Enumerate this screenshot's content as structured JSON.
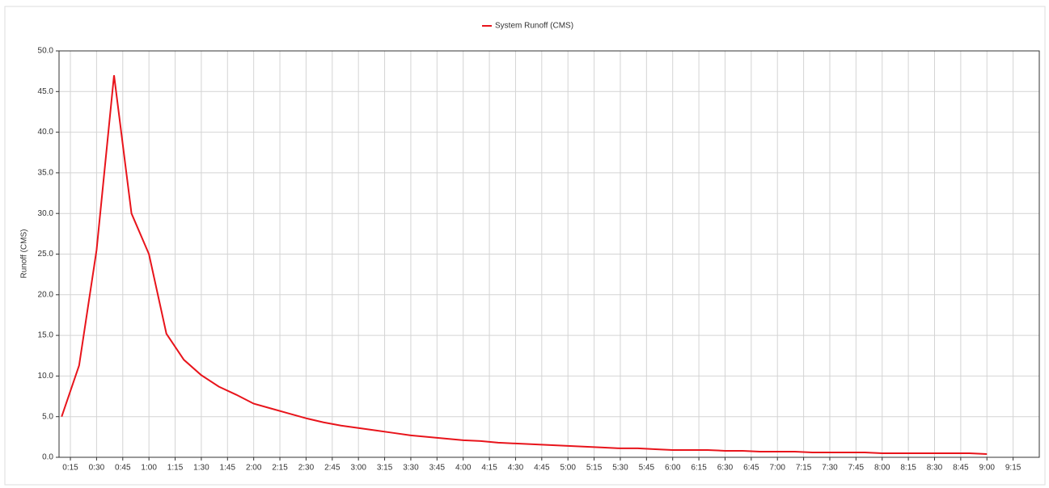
{
  "chart_data": {
    "type": "line",
    "legend": "top",
    "y_label": "Runoff (CMS)",
    "grid": true,
    "x": [
      10,
      20,
      30,
      40,
      50,
      60,
      70,
      80,
      90,
      100,
      110,
      120,
      130,
      140,
      150,
      160,
      170,
      180,
      190,
      200,
      210,
      220,
      230,
      240,
      250,
      260,
      270,
      280,
      290,
      300,
      310,
      320,
      330,
      340,
      350,
      360,
      370,
      380,
      390,
      400,
      410,
      420,
      430,
      440,
      450,
      460,
      470,
      480,
      490,
      500,
      510,
      520,
      530,
      540
    ],
    "series": [
      {
        "name": "System Runoff (CMS)",
        "color": "#e8141b",
        "values": [
          5.0,
          11.3,
          25.5,
          47.0,
          30.0,
          25.0,
          15.2,
          12.0,
          10.1,
          8.7,
          7.7,
          6.6,
          6.0,
          5.4,
          4.8,
          4.3,
          3.9,
          3.6,
          3.3,
          3.0,
          2.7,
          2.5,
          2.3,
          2.1,
          2.0,
          1.8,
          1.7,
          1.6,
          1.5,
          1.4,
          1.3,
          1.2,
          1.1,
          1.1,
          1.0,
          0.9,
          0.9,
          0.9,
          0.8,
          0.8,
          0.7,
          0.7,
          0.7,
          0.6,
          0.6,
          0.6,
          0.6,
          0.5,
          0.5,
          0.5,
          0.5,
          0.5,
          0.5,
          0.4
        ]
      }
    ],
    "xlim": [
      8.5,
      570
    ],
    "xticks": [
      {
        "value": 15,
        "label": "0:15"
      },
      {
        "value": 30,
        "label": "0:30"
      },
      {
        "value": 45,
        "label": "0:45"
      },
      {
        "value": 60,
        "label": "1:00"
      },
      {
        "value": 75,
        "label": "1:15"
      },
      {
        "value": 90,
        "label": "1:30"
      },
      {
        "value": 105,
        "label": "1:45"
      },
      {
        "value": 120,
        "label": "2:00"
      },
      {
        "value": 135,
        "label": "2:15"
      },
      {
        "value": 150,
        "label": "2:30"
      },
      {
        "value": 165,
        "label": "2:45"
      },
      {
        "value": 180,
        "label": "3:00"
      },
      {
        "value": 195,
        "label": "3:15"
      },
      {
        "value": 210,
        "label": "3:30"
      },
      {
        "value": 225,
        "label": "3:45"
      },
      {
        "value": 240,
        "label": "4:00"
      },
      {
        "value": 255,
        "label": "4:15"
      },
      {
        "value": 270,
        "label": "4:30"
      },
      {
        "value": 285,
        "label": "4:45"
      },
      {
        "value": 300,
        "label": "5:00"
      },
      {
        "value": 315,
        "label": "5:15"
      },
      {
        "value": 330,
        "label": "5:30"
      },
      {
        "value": 345,
        "label": "5:45"
      },
      {
        "value": 360,
        "label": "6:00"
      },
      {
        "value": 375,
        "label": "6:15"
      },
      {
        "value": 390,
        "label": "6:30"
      },
      {
        "value": 405,
        "label": "6:45"
      },
      {
        "value": 420,
        "label": "7:00"
      },
      {
        "value": 435,
        "label": "7:15"
      },
      {
        "value": 450,
        "label": "7:30"
      },
      {
        "value": 465,
        "label": "7:45"
      },
      {
        "value": 480,
        "label": "8:00"
      },
      {
        "value": 495,
        "label": "8:15"
      },
      {
        "value": 510,
        "label": "8:30"
      },
      {
        "value": 525,
        "label": "8:45"
      },
      {
        "value": 540,
        "label": "9:00"
      },
      {
        "value": 555,
        "label": "9:15"
      }
    ],
    "ylim": [
      0,
      50
    ],
    "yticks": [
      {
        "value": 0,
        "label": "0.0"
      },
      {
        "value": 5,
        "label": "5.0"
      },
      {
        "value": 10,
        "label": "10.0"
      },
      {
        "value": 15,
        "label": "15.0"
      },
      {
        "value": 20,
        "label": "20.0"
      },
      {
        "value": 25,
        "label": "25.0"
      },
      {
        "value": 30,
        "label": "30.0"
      },
      {
        "value": 35,
        "label": "35.0"
      },
      {
        "value": 40,
        "label": "40.0"
      },
      {
        "value": 45,
        "label": "45.0"
      },
      {
        "value": 50,
        "label": "50.0"
      }
    ]
  }
}
